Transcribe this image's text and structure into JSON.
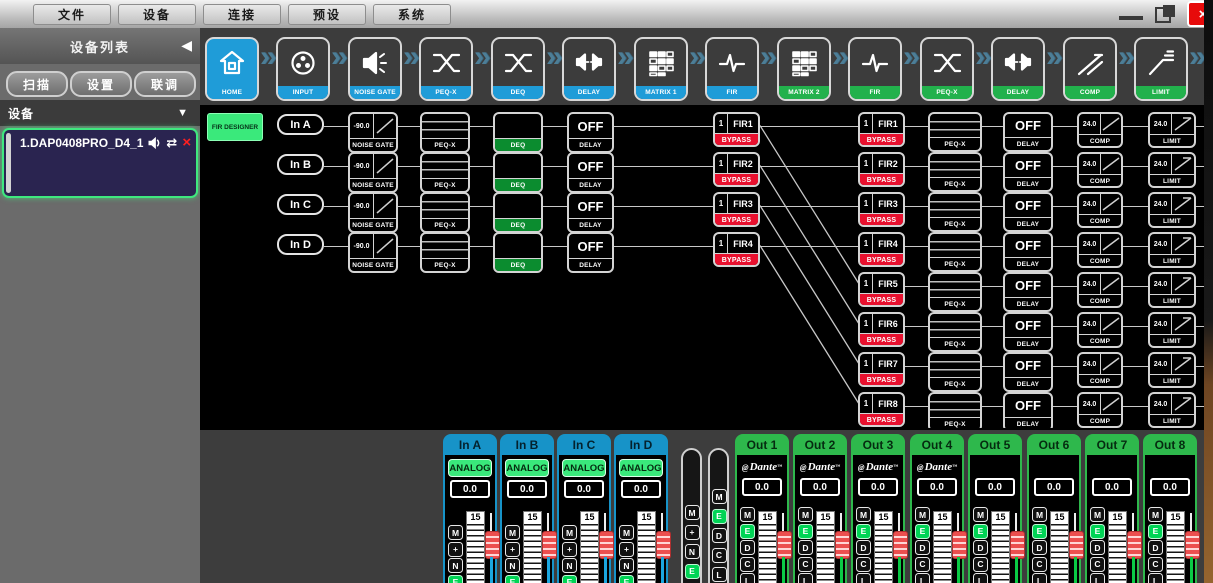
{
  "titlebar": {
    "menu_items": [
      "文件",
      "设备",
      "连接",
      "预设",
      "系统"
    ]
  },
  "sidebar": {
    "title": "设备列表",
    "action_buttons": [
      "扫描",
      "设置",
      "联调"
    ],
    "device_section_label": "设备",
    "devices": [
      {
        "name": "1.DAP0408PRO_D4_1",
        "icons": [
          "speaker-icon",
          "sync-icon",
          "remove-icon"
        ]
      }
    ]
  },
  "chain": {
    "modules": [
      {
        "label": "HOME",
        "icon": "home-icon",
        "color": "blue",
        "selected": true
      },
      {
        "label": "INPUT",
        "icon": "xlr-input-icon",
        "color": "blue",
        "selected": false
      },
      {
        "label": "NOISE GATE",
        "icon": "speaker-noise-icon",
        "color": "blue",
        "selected": false
      },
      {
        "label": "PEQ-X",
        "icon": "eq-x-icon",
        "color": "blue",
        "selected": false
      },
      {
        "label": "DEQ",
        "icon": "eq-x-icon",
        "color": "blue",
        "selected": false
      },
      {
        "label": "DELAY",
        "icon": "delay-speakers-icon",
        "color": "blue",
        "selected": false
      },
      {
        "label": "MATRIX 1",
        "icon": "matrix-grid-icon",
        "color": "blue",
        "selected": false
      },
      {
        "label": "FIR",
        "icon": "impulse-icon",
        "color": "blue",
        "selected": false
      },
      {
        "label": "MATRIX 2",
        "icon": "matrix-grid-icon",
        "color": "green",
        "selected": false
      },
      {
        "label": "FIR",
        "icon": "impulse-icon",
        "color": "green",
        "selected": false
      },
      {
        "label": "PEQ-X",
        "icon": "eq-x-icon",
        "color": "green",
        "selected": false
      },
      {
        "label": "DELAY",
        "icon": "delay-speakers-icon",
        "color": "green",
        "selected": false
      },
      {
        "label": "COMP",
        "icon": "comp-curve-icon",
        "color": "green",
        "selected": false
      },
      {
        "label": "LIMIT",
        "icon": "limit-curve-icon",
        "color": "green",
        "selected": false
      }
    ]
  },
  "flow": {
    "fir_designer_label": "FIR DESIGNER",
    "input_rows": [
      {
        "label": "In A",
        "gate_value": "-90.0",
        "gate_label": "NOISE GATE",
        "peq_label": "PEQ-X",
        "deq_label": "DEQ",
        "delay_value": "OFF",
        "delay_label": "DELAY",
        "fir_index": "1",
        "fir_name": "FIR1",
        "fir_status": "BYPASS"
      },
      {
        "label": "In B",
        "gate_value": "-90.0",
        "gate_label": "NOISE GATE",
        "peq_label": "PEQ-X",
        "deq_label": "DEQ",
        "delay_value": "OFF",
        "delay_label": "DELAY",
        "fir_index": "1",
        "fir_name": "FIR2",
        "fir_status": "BYPASS"
      },
      {
        "label": "In C",
        "gate_value": "-90.0",
        "gate_label": "NOISE GATE",
        "peq_label": "PEQ-X",
        "deq_label": "DEQ",
        "delay_value": "OFF",
        "delay_label": "DELAY",
        "fir_index": "1",
        "fir_name": "FIR3",
        "fir_status": "BYPASS"
      },
      {
        "label": "In D",
        "gate_value": "-90.0",
        "gate_label": "NOISE GATE",
        "peq_label": "PEQ-X",
        "deq_label": "DEQ",
        "delay_value": "OFF",
        "delay_label": "DELAY",
        "fir_index": "1",
        "fir_name": "FIR4",
        "fir_status": "BYPASS"
      }
    ],
    "output_rows": [
      {
        "fir_index": "1",
        "fir_name": "FIR1",
        "fir_status": "BYPASS",
        "peq_label": "PEQ-X",
        "delay_value": "OFF",
        "delay_label": "DELAY",
        "comp_value": "24.0",
        "comp_label": "COMP",
        "limit_value": "24.0",
        "limit_label": "LIMIT"
      },
      {
        "fir_index": "1",
        "fir_name": "FIR2",
        "fir_status": "BYPASS",
        "peq_label": "PEQ-X",
        "delay_value": "OFF",
        "delay_label": "DELAY",
        "comp_value": "24.0",
        "comp_label": "COMP",
        "limit_value": "24.0",
        "limit_label": "LIMIT"
      },
      {
        "fir_index": "1",
        "fir_name": "FIR3",
        "fir_status": "BYPASS",
        "peq_label": "PEQ-X",
        "delay_value": "OFF",
        "delay_label": "DELAY",
        "comp_value": "24.0",
        "comp_label": "COMP",
        "limit_value": "24.0",
        "limit_label": "LIMIT"
      },
      {
        "fir_index": "1",
        "fir_name": "FIR4",
        "fir_status": "BYPASS",
        "peq_label": "PEQ-X",
        "delay_value": "OFF",
        "delay_label": "DELAY",
        "comp_value": "24.0",
        "comp_label": "COMP",
        "limit_value": "24.0",
        "limit_label": "LIMIT"
      },
      {
        "fir_index": "1",
        "fir_name": "FIR5",
        "fir_status": "BYPASS",
        "peq_label": "PEQ-X",
        "delay_value": "OFF",
        "delay_label": "DELAY",
        "comp_value": "24.0",
        "comp_label": "COMP",
        "limit_value": "24.0",
        "limit_label": "LIMIT"
      },
      {
        "fir_index": "1",
        "fir_name": "FIR6",
        "fir_status": "BYPASS",
        "peq_label": "PEQ-X",
        "delay_value": "OFF",
        "delay_label": "DELAY",
        "comp_value": "24.0",
        "comp_label": "COMP",
        "limit_value": "24.0",
        "limit_label": "LIMIT"
      },
      {
        "fir_index": "1",
        "fir_name": "FIR7",
        "fir_status": "BYPASS",
        "peq_label": "PEQ-X",
        "delay_value": "OFF",
        "delay_label": "DELAY",
        "comp_value": "24.0",
        "comp_label": "COMP",
        "limit_value": "24.0",
        "limit_label": "LIMIT"
      },
      {
        "fir_index": "1",
        "fir_name": "FIR8",
        "fir_status": "BYPASS",
        "peq_label": "PEQ-X",
        "delay_value": "OFF",
        "delay_label": "DELAY",
        "comp_value": "24.0",
        "comp_label": "COMP",
        "limit_value": "24.0",
        "limit_label": "LIMIT"
      }
    ]
  },
  "mixer": {
    "inputs": [
      {
        "name": "In A",
        "source_type": "analog",
        "source": "ANALOG",
        "gain": "0.0",
        "scale_top": "15",
        "buttons": [
          "M",
          "+",
          "N",
          "E"
        ],
        "active": "E"
      },
      {
        "name": "In B",
        "source_type": "analog",
        "source": "ANALOG",
        "gain": "0.0",
        "scale_top": "15",
        "buttons": [
          "M",
          "+",
          "N",
          "E"
        ],
        "active": "E"
      },
      {
        "name": "In C",
        "source_type": "analog",
        "source": "ANALOG",
        "gain": "0.0",
        "scale_top": "15",
        "buttons": [
          "M",
          "+",
          "N",
          "E"
        ],
        "active": "E"
      },
      {
        "name": "In D",
        "source_type": "analog",
        "source": "ANALOG",
        "gain": "0.0",
        "scale_top": "15",
        "buttons": [
          "M",
          "+",
          "N",
          "E"
        ],
        "active": "E"
      }
    ],
    "link_strips": [
      {
        "buttons": [
          "M",
          "+",
          "N",
          "E"
        ],
        "active": "E"
      },
      {
        "buttons": [
          "M",
          "E",
          "D",
          "C",
          "L"
        ],
        "active": "E"
      }
    ],
    "outputs": [
      {
        "name": "Out 1",
        "source_type": "dante",
        "source": "Dante",
        "gain": "0.0",
        "scale_top": "15",
        "buttons": [
          "M",
          "E",
          "D",
          "C",
          "L"
        ],
        "active": "E"
      },
      {
        "name": "Out 2",
        "source_type": "dante",
        "source": "Dante",
        "gain": "0.0",
        "scale_top": "15",
        "buttons": [
          "M",
          "E",
          "D",
          "C",
          "L"
        ],
        "active": "E"
      },
      {
        "name": "Out 3",
        "source_type": "dante",
        "source": "Dante",
        "gain": "0.0",
        "scale_top": "15",
        "buttons": [
          "M",
          "E",
          "D",
          "C",
          "L"
        ],
        "active": "E"
      },
      {
        "name": "Out 4",
        "source_type": "dante",
        "source": "Dante",
        "gain": "0.0",
        "scale_top": "15",
        "buttons": [
          "M",
          "E",
          "D",
          "C",
          "L"
        ],
        "active": "E"
      },
      {
        "name": "Out 5",
        "source_type": "none",
        "source": "",
        "gain": "0.0",
        "scale_top": "15",
        "buttons": [
          "M",
          "E",
          "D",
          "C",
          "L"
        ],
        "active": "E"
      },
      {
        "name": "Out 6",
        "source_type": "none",
        "source": "",
        "gain": "0.0",
        "scale_top": "15",
        "buttons": [
          "M",
          "E",
          "D",
          "C",
          "L"
        ],
        "active": "E"
      },
      {
        "name": "Out 7",
        "source_type": "none",
        "source": "",
        "gain": "0.0",
        "scale_top": "15",
        "buttons": [
          "M",
          "E",
          "D",
          "C",
          "L"
        ],
        "active": "E"
      },
      {
        "name": "Out 8",
        "source_type": "none",
        "source": "",
        "gain": "0.0",
        "scale_top": "15",
        "buttons": [
          "M",
          "E",
          "D",
          "C",
          "L"
        ],
        "active": "E"
      }
    ]
  },
  "colors": {
    "accent_blue": "#1f9cd8",
    "accent_green": "#22b14c",
    "bypass_red": "#e8102e",
    "bright_green": "#3ae97b",
    "deq_green": "#0b8c2f",
    "meter_blue": "#1ba7e0",
    "meter_green": "#0acb45",
    "fader_red": "#ec4f4f",
    "device_panel_navy": "#2a2450",
    "device_border_green": "#3fe87e"
  }
}
